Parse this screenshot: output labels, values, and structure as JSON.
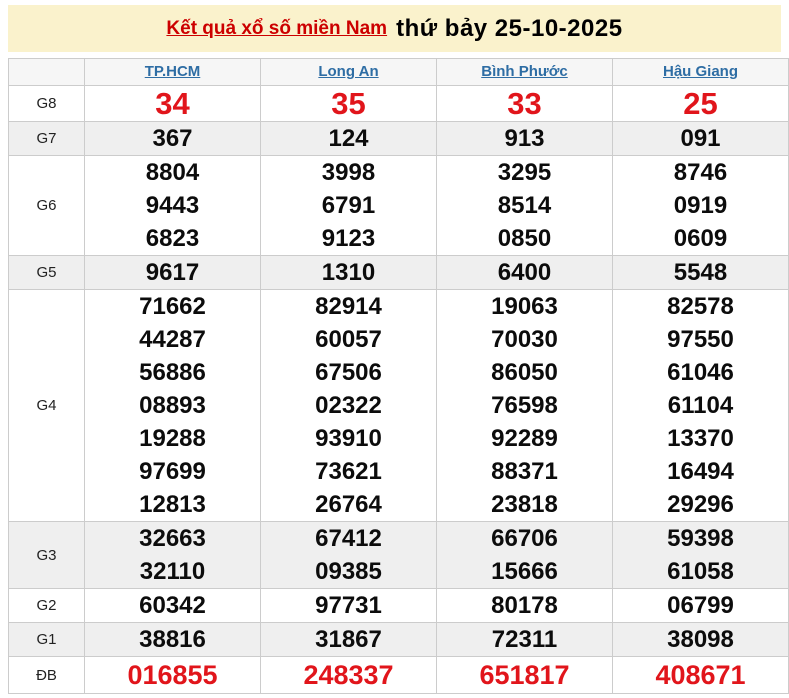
{
  "banner": {
    "link_text": "Kết quả xổ số miền Nam",
    "date_text": "thứ bảy 25-10-2025"
  },
  "columns": [
    "TP.HCM",
    "Long An",
    "Bình Phước",
    "Hậu Giang"
  ],
  "rows": [
    {
      "label": "G8",
      "emphasis": true,
      "values": [
        [
          "34"
        ],
        [
          "35"
        ],
        [
          "33"
        ],
        [
          "25"
        ]
      ]
    },
    {
      "label": "G7",
      "emphasis": false,
      "values": [
        [
          "367"
        ],
        [
          "124"
        ],
        [
          "913"
        ],
        [
          "091"
        ]
      ]
    },
    {
      "label": "G6",
      "emphasis": false,
      "values": [
        [
          "8804",
          "9443",
          "6823"
        ],
        [
          "3998",
          "6791",
          "9123"
        ],
        [
          "3295",
          "8514",
          "0850"
        ],
        [
          "8746",
          "0919",
          "0609"
        ]
      ]
    },
    {
      "label": "G5",
      "emphasis": false,
      "values": [
        [
          "9617"
        ],
        [
          "1310"
        ],
        [
          "6400"
        ],
        [
          "5548"
        ]
      ]
    },
    {
      "label": "G4",
      "emphasis": false,
      "values": [
        [
          "71662",
          "44287",
          "56886",
          "08893",
          "19288",
          "97699",
          "12813"
        ],
        [
          "82914",
          "60057",
          "67506",
          "02322",
          "93910",
          "73621",
          "26764"
        ],
        [
          "19063",
          "70030",
          "86050",
          "76598",
          "92289",
          "88371",
          "23818"
        ],
        [
          "82578",
          "97550",
          "61046",
          "61104",
          "13370",
          "16494",
          "29296"
        ]
      ]
    },
    {
      "label": "G3",
      "emphasis": false,
      "values": [
        [
          "32663",
          "32110"
        ],
        [
          "67412",
          "09385"
        ],
        [
          "66706",
          "15666"
        ],
        [
          "59398",
          "61058"
        ]
      ]
    },
    {
      "label": "G2",
      "emphasis": false,
      "values": [
        [
          "60342"
        ],
        [
          "97731"
        ],
        [
          "80178"
        ],
        [
          "06799"
        ]
      ]
    },
    {
      "label": "G1",
      "emphasis": false,
      "values": [
        [
          "38816"
        ],
        [
          "31867"
        ],
        [
          "72311"
        ],
        [
          "38098"
        ]
      ]
    },
    {
      "label": "ĐB",
      "emphasis": true,
      "values": [
        [
          "016855"
        ],
        [
          "248337"
        ],
        [
          "651817"
        ],
        [
          "408671"
        ]
      ]
    }
  ],
  "colors": {
    "banner_bg": "#faf2cc",
    "banner_link_red": "#cc0000",
    "link_blue": "#2e6da4",
    "accent_red": "#e1151b",
    "shaded_row": "#efefef",
    "border": "#cccccc"
  }
}
